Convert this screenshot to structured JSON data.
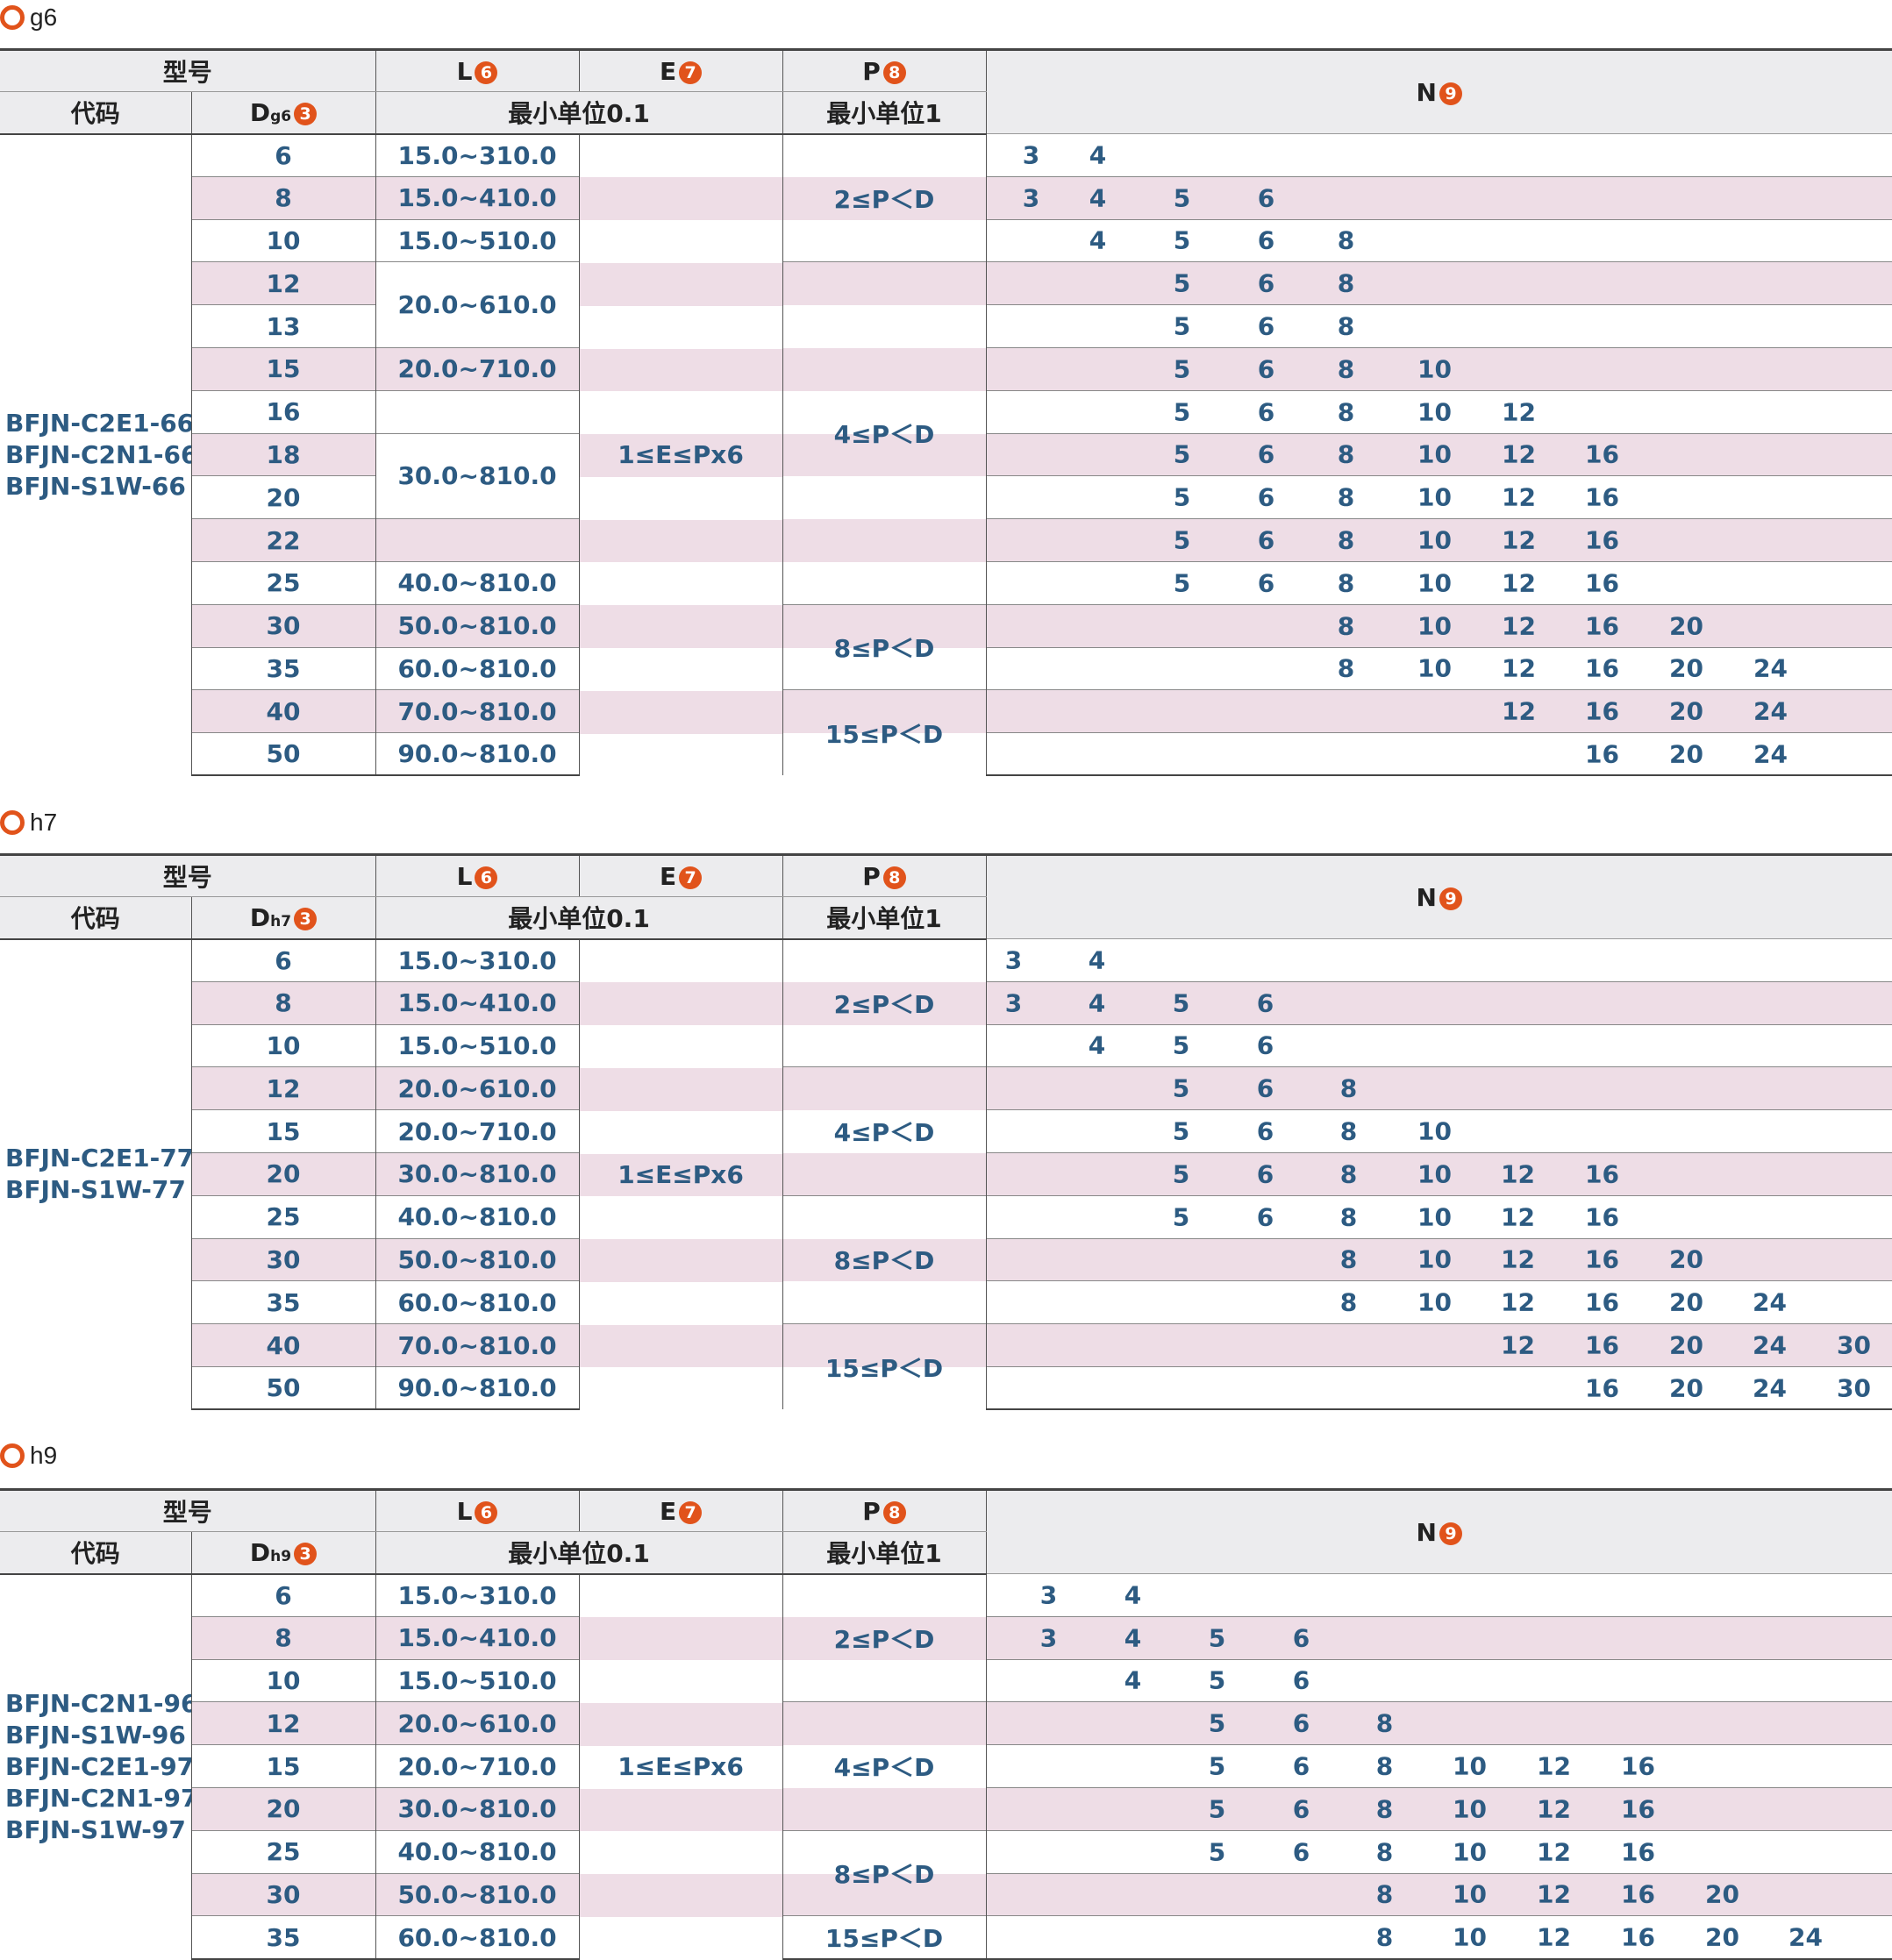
{
  "labels": {
    "model": "型号",
    "code": "代码",
    "L": "L",
    "E": "E",
    "P": "P",
    "N": "N",
    "min01": "最小单位0.1",
    "min1": "最小单位1",
    "D": "D",
    "n3": "3",
    "n6": "6",
    "n7": "7",
    "n8": "8",
    "n9": "9"
  },
  "colors": {
    "accent": "#e1531b",
    "value_text": "#2d5b82",
    "pink_band": "#eedde6",
    "header_bg": "#ececee"
  },
  "sections": [
    {
      "title": "g6",
      "dsub": "g6",
      "models": [
        "BFJN-C2E1-66",
        "BFJN-C2N1-66",
        "BFJN-S1W-66"
      ],
      "E": "1≤E≤Px6",
      "rows": [
        {
          "D": "6",
          "N": [
            "3",
            "4"
          ]
        },
        {
          "D": "8",
          "N": [
            "3",
            "4",
            "5",
            "6"
          ]
        },
        {
          "D": "10",
          "N": [
            "4",
            "5",
            "6",
            "8"
          ]
        },
        {
          "D": "12",
          "N": [
            "5",
            "6",
            "8"
          ]
        },
        {
          "D": "13",
          "N": [
            "5",
            "6",
            "8"
          ]
        },
        {
          "D": "15",
          "N": [
            "5",
            "6",
            "8",
            "10"
          ]
        },
        {
          "D": "16",
          "N": [
            "5",
            "6",
            "8",
            "10",
            "12"
          ]
        },
        {
          "D": "18",
          "N": [
            "5",
            "6",
            "8",
            "10",
            "12",
            "16"
          ]
        },
        {
          "D": "20",
          "N": [
            "5",
            "6",
            "8",
            "10",
            "12",
            "16"
          ]
        },
        {
          "D": "22",
          "N": [
            "5",
            "6",
            "8",
            "10",
            "12",
            "16"
          ]
        },
        {
          "D": "25",
          "N": [
            "5",
            "6",
            "8",
            "10",
            "12",
            "16"
          ]
        },
        {
          "D": "30",
          "N": [
            "8",
            "10",
            "12",
            "16",
            "20"
          ]
        },
        {
          "D": "35",
          "N": [
            "8",
            "10",
            "12",
            "16",
            "20",
            "24"
          ]
        },
        {
          "D": "40",
          "N": [
            "12",
            "16",
            "20",
            "24"
          ]
        },
        {
          "D": "50",
          "N": [
            "16",
            "20",
            "24"
          ]
        }
      ],
      "L_groups": [
        {
          "text": "15.0~310.0",
          "rows": 1
        },
        {
          "text": "15.0~410.0",
          "rows": 1
        },
        {
          "text": "15.0~510.0",
          "rows": 1
        },
        {
          "text": "20.0~610.0",
          "rows": 2
        },
        {
          "text": "20.0~710.0",
          "rows": 1
        },
        {
          "text": "",
          "rows": 1
        },
        {
          "text": "30.0~810.0",
          "rows": 2
        },
        {
          "text": "",
          "rows": 1
        },
        {
          "text": "40.0~810.0",
          "rows": 1
        },
        {
          "text": "50.0~810.0",
          "rows": 1
        },
        {
          "text": "60.0~810.0",
          "rows": 1
        },
        {
          "text": "70.0~810.0",
          "rows": 1
        },
        {
          "text": "90.0~810.0",
          "rows": 1
        }
      ],
      "P_groups": [
        {
          "text": "2≤P＜D",
          "rows": 3
        },
        {
          "text": "4≤P＜D",
          "rows": 8
        },
        {
          "text": "8≤P＜D",
          "rows": 2
        },
        {
          "text": "15≤P＜D",
          "rows": 2
        }
      ]
    },
    {
      "title": "h7",
      "dsub": "h7",
      "models": [
        "BFJN-C2E1-77",
        "BFJN-S1W-77"
      ],
      "E": "1≤E≤Px6",
      "rows": [
        {
          "D": "6",
          "N": [
            "3",
            "4"
          ]
        },
        {
          "D": "8",
          "N": [
            "3",
            "4",
            "5",
            "6"
          ]
        },
        {
          "D": "10",
          "N": [
            "4",
            "5",
            "6"
          ]
        },
        {
          "D": "12",
          "N": [
            "5",
            "6",
            "8"
          ]
        },
        {
          "D": "15",
          "N": [
            "5",
            "6",
            "8",
            "10"
          ]
        },
        {
          "D": "20",
          "N": [
            "5",
            "6",
            "8",
            "10",
            "12",
            "16"
          ]
        },
        {
          "D": "25",
          "N": [
            "5",
            "6",
            "8",
            "10",
            "12",
            "16"
          ]
        },
        {
          "D": "30",
          "N": [
            "8",
            "10",
            "12",
            "16",
            "20"
          ]
        },
        {
          "D": "35",
          "N": [
            "8",
            "10",
            "12",
            "16",
            "20",
            "24"
          ]
        },
        {
          "D": "40",
          "N": [
            "12",
            "16",
            "20",
            "24",
            "30"
          ]
        },
        {
          "D": "50",
          "N": [
            "16",
            "20",
            "24",
            "30"
          ]
        }
      ],
      "L": [
        "15.0~310.0",
        "15.0~410.0",
        "15.0~510.0",
        "20.0~610.0",
        "20.0~710.0",
        "30.0~810.0",
        "40.0~810.0",
        "50.0~810.0",
        "60.0~810.0",
        "70.0~810.0",
        "90.0~810.0"
      ],
      "P_groups": [
        {
          "text": "2≤P＜D",
          "rows": 3
        },
        {
          "text": "4≤P＜D",
          "rows": 3
        },
        {
          "text": "8≤P＜D",
          "rows": 3
        },
        {
          "text": "15≤P＜D",
          "rows": 2
        }
      ]
    },
    {
      "title": "h9",
      "dsub": "h9",
      "models": [
        "BFJN-C2N1-96",
        "BFJN-S1W-96",
        "BFJN-C2E1-97",
        "BFJN-C2N1-97",
        "BFJN-S1W-97"
      ],
      "E": "1≤E≤Px6",
      "rows": [
        {
          "D": "6",
          "N": [
            "3",
            "4"
          ]
        },
        {
          "D": "8",
          "N": [
            "3",
            "4",
            "5",
            "6"
          ]
        },
        {
          "D": "10",
          "N": [
            "4",
            "5",
            "6"
          ]
        },
        {
          "D": "12",
          "N": [
            "5",
            "6",
            "8"
          ]
        },
        {
          "D": "15",
          "N": [
            "5",
            "6",
            "8",
            "10",
            "12",
            "16"
          ]
        },
        {
          "D": "20",
          "N": [
            "5",
            "6",
            "8",
            "10",
            "12",
            "16"
          ]
        },
        {
          "D": "25",
          "N": [
            "5",
            "6",
            "8",
            "10",
            "12",
            "16"
          ]
        },
        {
          "D": "30",
          "N": [
            "8",
            "10",
            "12",
            "16",
            "20"
          ]
        },
        {
          "D": "35",
          "N": [
            "8",
            "10",
            "12",
            "16",
            "20",
            "24"
          ]
        }
      ],
      "L": [
        "15.0~310.0",
        "15.0~410.0",
        "15.0~510.0",
        "20.0~610.0",
        "20.0~710.0",
        "30.0~810.0",
        "40.0~810.0",
        "50.0~810.0",
        "60.0~810.0"
      ],
      "P_groups": [
        {
          "text": "2≤P＜D",
          "rows": 3
        },
        {
          "text": "4≤P＜D",
          "rows": 3
        },
        {
          "text": "8≤P＜D",
          "rows": 2
        },
        {
          "text": "15≤P＜D",
          "rows": 1
        }
      ]
    }
  ]
}
